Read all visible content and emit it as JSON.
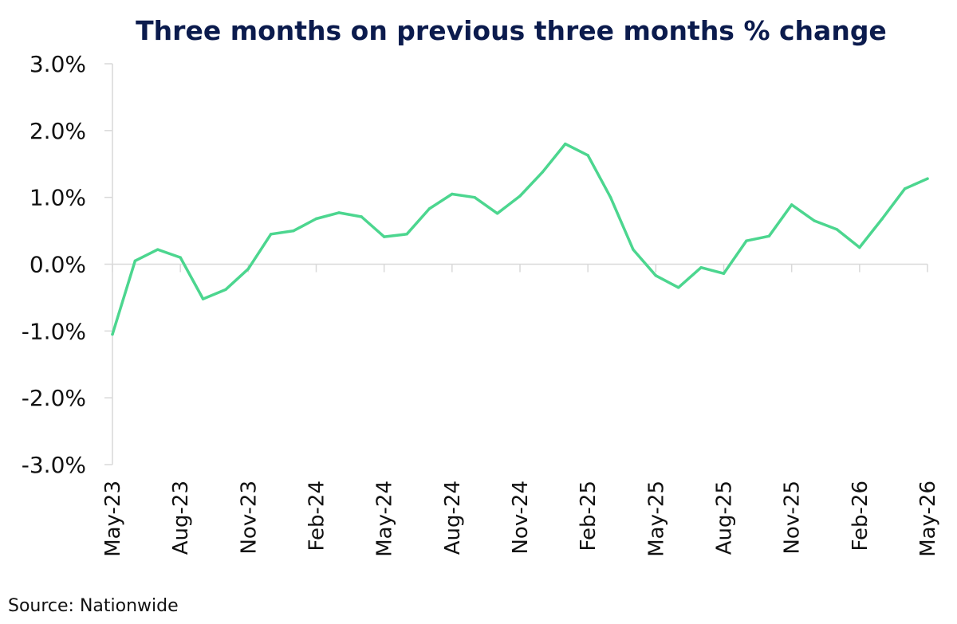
{
  "chart_data": {
    "type": "line",
    "title": "Three months on previous three months % change",
    "source": "Source: Nationwide",
    "xlabel": "",
    "ylabel": "",
    "ylim": [
      -3.0,
      3.0
    ],
    "y_ticks": [
      3.0,
      2.0,
      1.0,
      0.0,
      -1.0,
      -2.0,
      -3.0
    ],
    "y_tick_labels": [
      "3.0%",
      "2.0%",
      "1.0%",
      "0.0%",
      "-1.0%",
      "-2.0%",
      "-3.0%"
    ],
    "x_tick_labels": [
      "May-23",
      "Aug-23",
      "Nov-23",
      "Feb-24",
      "May-24",
      "Aug-24",
      "Nov-24",
      "Feb-25",
      "May-25",
      "Aug-25",
      "Nov-25",
      "Feb-26",
      "May-26"
    ],
    "x": [
      "May-23",
      "Jun-23",
      "Jul-23",
      "Aug-23",
      "Sep-23",
      "Oct-23",
      "Nov-23",
      "Dec-23",
      "Jan-24",
      "Feb-24",
      "Mar-24",
      "Apr-24",
      "May-24",
      "Jun-24",
      "Jul-24",
      "Aug-24",
      "Sep-24",
      "Oct-24",
      "Nov-24",
      "Dec-24",
      "Jan-25",
      "Feb-25",
      "Mar-25",
      "Apr-25",
      "May-25",
      "Jun-25",
      "Jul-25",
      "Aug-25",
      "Sep-25",
      "Oct-25",
      "Nov-25",
      "Dec-25",
      "Jan-26",
      "Feb-26",
      "Mar-26",
      "Apr-26",
      "May-26"
    ],
    "series": [
      {
        "color": "#4cd68f",
        "values": [
          -1.05,
          0.05,
          0.22,
          0.1,
          -0.52,
          -0.38,
          -0.07,
          0.45,
          0.5,
          0.68,
          0.77,
          0.71,
          0.41,
          0.45,
          0.83,
          1.05,
          1.0,
          0.76,
          1.02,
          1.38,
          1.8,
          1.63,
          1.0,
          0.22,
          -0.17,
          -0.35,
          -0.05,
          -0.14,
          0.35,
          0.42,
          0.89,
          0.65,
          0.52,
          0.25,
          0.68,
          1.13,
          1.28
        ]
      }
    ],
    "grid": false,
    "legend": "none"
  }
}
